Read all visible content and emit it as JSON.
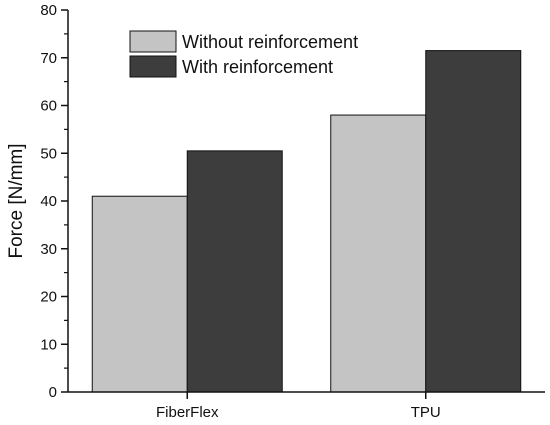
{
  "chart_data": {
    "type": "bar",
    "categories": [
      "FiberFlex",
      "TPU"
    ],
    "series": [
      {
        "name": "Without reinforcement",
        "values": [
          41,
          58
        ],
        "color": "#c4c4c4"
      },
      {
        "name": "With reinforcement",
        "values": [
          50.5,
          71.5
        ],
        "color": "#3d3d3d"
      }
    ],
    "ylabel": "Force [N/mm]",
    "xlabel": "",
    "ylim": [
      0,
      80
    ],
    "yticks": [
      0,
      10,
      20,
      30,
      40,
      50,
      60,
      70,
      80
    ],
    "grid": false,
    "legend_position": "top-left"
  }
}
